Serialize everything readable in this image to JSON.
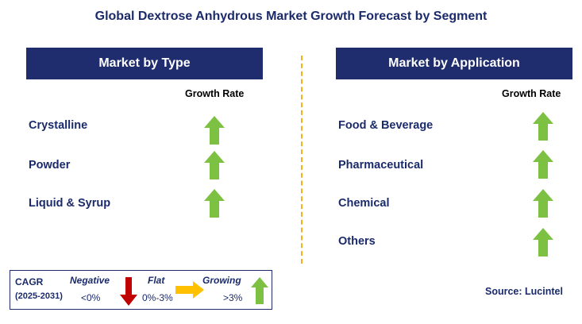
{
  "title": "Global Dextrose Anhydrous Market Growth Forecast by Segment",
  "type_panel": {
    "header": "Market by Type",
    "growth_label": "Growth Rate",
    "items": [
      {
        "label": "Crystalline",
        "trend": "growing"
      },
      {
        "label": "Powder",
        "trend": "growing"
      },
      {
        "label": "Liquid & Syrup",
        "trend": "growing"
      }
    ]
  },
  "application_panel": {
    "header": "Market by Application",
    "growth_label": "Growth Rate",
    "items": [
      {
        "label": "Food & Beverage",
        "trend": "growing"
      },
      {
        "label": "Pharmaceutical",
        "trend": "growing"
      },
      {
        "label": "Chemical",
        "trend": "growing"
      },
      {
        "label": "Others",
        "trend": "growing"
      }
    ]
  },
  "legend": {
    "cagr_label": "CAGR",
    "period": "(2025-2031)",
    "negative": {
      "label": "Negative",
      "range": "<0%"
    },
    "flat": {
      "label": "Flat",
      "range": "0%-3%"
    },
    "growing": {
      "label": "Growing",
      "range": ">3%"
    }
  },
  "source": "Source: Lucintel",
  "colors": {
    "header_bg": "#1f2d6e",
    "text_navy": "#1a2a6b",
    "growing_arrow": "#7dc142",
    "negative_arrow": "#c00000",
    "flat_arrow": "#ffc000",
    "divider": "#f2b21c"
  }
}
